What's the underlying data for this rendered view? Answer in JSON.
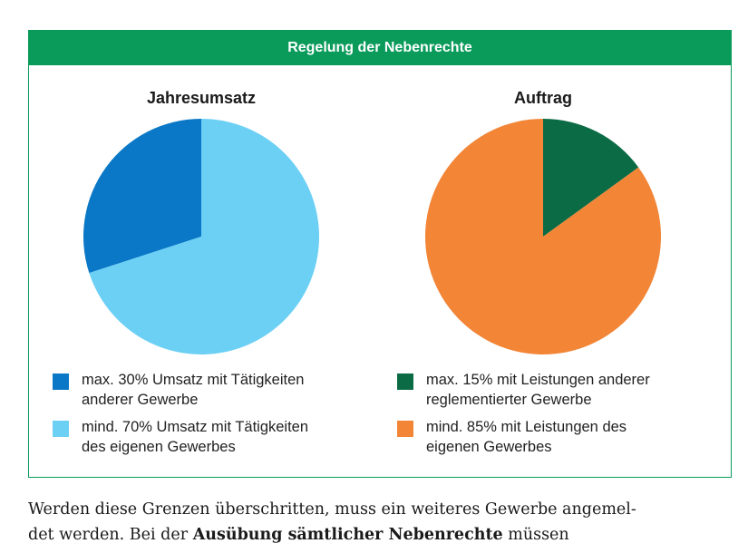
{
  "header": {
    "title": "Regelung der Nebenrechte"
  },
  "colors": {
    "green_frame": "#0a9b5b",
    "blue_dark": "#0a78c6",
    "blue_light": "#6cd0f5",
    "green_dark": "#0b6b45",
    "orange": "#f28536"
  },
  "chart_data": [
    {
      "type": "pie",
      "title": "Jahresumsatz",
      "slices": [
        {
          "label": "max. 30% Umsatz mit Tätigkeiten anderer Gewerbe",
          "value": 30,
          "color": "#0a78c6"
        },
        {
          "label": "mind. 70% Umsatz mit Tätigkeiten des eigenen Gewerbes",
          "value": 70,
          "color": "#6cd0f5"
        }
      ]
    },
    {
      "type": "pie",
      "title": "Auftrag",
      "slices": [
        {
          "label": "max. 15% mit Leistungen anderer reglementierter Gewerbe",
          "value": 15,
          "color": "#0b6b45"
        },
        {
          "label": "mind. 85% mit Leistungen des eigenen Gewerbes",
          "value": 85,
          "color": "#f28536"
        }
      ]
    }
  ],
  "legend_left": [
    {
      "line1": "max. 30% Umsatz mit Tätigkeiten",
      "line2": "anderer Gewerbe"
    },
    {
      "line1": "mind. 70% Umsatz mit Tätigkeiten",
      "line2": "des eigenen Gewerbes"
    }
  ],
  "legend_right": [
    {
      "line1": "max. 15% mit Leistungen anderer",
      "line2": "reglementierter Gewerbe"
    },
    {
      "line1": "mind. 85% mit Leistungen des",
      "line2": "eigenen Gewerbes"
    }
  ],
  "body": {
    "line1": "Werden diese Grenzen überschritten, muss ein weiteres Gewerbe angemel-",
    "line2_a": "det werden. Bei der ",
    "line2_bold": "Ausübung sämtlicher Nebenrechte",
    "line2_b": " müssen"
  }
}
